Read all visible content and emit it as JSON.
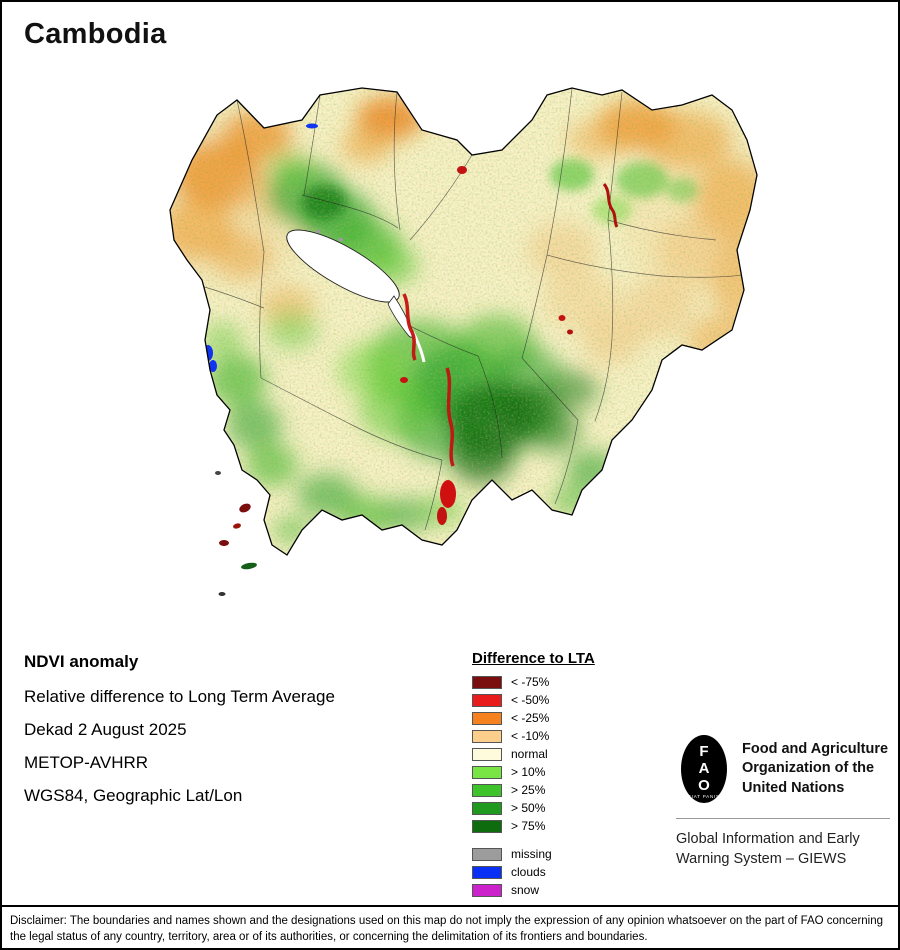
{
  "title": "Cambodia",
  "info": {
    "heading": "NDVI anomaly",
    "product": "Relative difference to Long Term Average",
    "dekad": "Dekad 2 August 2025",
    "sensor": "METOP-AVHRR",
    "projection": "WGS84, Geographic Lat/Lon"
  },
  "legend": {
    "title": "Difference to LTA",
    "items": [
      {
        "label": "< -75%",
        "color": "#7A0D0D"
      },
      {
        "label": "< -50%",
        "color": "#E81C1C"
      },
      {
        "label": "< -25%",
        "color": "#F5821F"
      },
      {
        "label": "< -10%",
        "color": "#FBCE8B"
      },
      {
        "label": "normal",
        "color": "#FDFBDC"
      },
      {
        "label": "> 10%",
        "color": "#79E544"
      },
      {
        "label": "> 25%",
        "color": "#3FC32A"
      },
      {
        "label": "> 50%",
        "color": "#1F9A1F"
      },
      {
        "label": "> 75%",
        "color": "#0E6B0E"
      }
    ],
    "extra_items": [
      {
        "label": "missing",
        "color": "#9C9C9C"
      },
      {
        "label": "clouds",
        "color": "#0A2FF5"
      },
      {
        "label": "snow",
        "color": "#CC22CC"
      }
    ]
  },
  "fao": {
    "logo_letters": [
      "F",
      "A",
      "O"
    ],
    "logo_motto": "FIAT PANIS",
    "org_name": "Food and Agriculture\nOrganization of the\nUnited Nations",
    "giews_name": "Global Information and Early\nWarning System – GIEWS"
  },
  "disclaimer": "Disclaimer: The boundaries and names shown and the designations used on this map do not imply the expression of any opinion whatsoever on the part of FAO concerning the legal status of any country, territory, area or of its authorities, or concerning the delimitation of its frontiers and boundaries."
}
